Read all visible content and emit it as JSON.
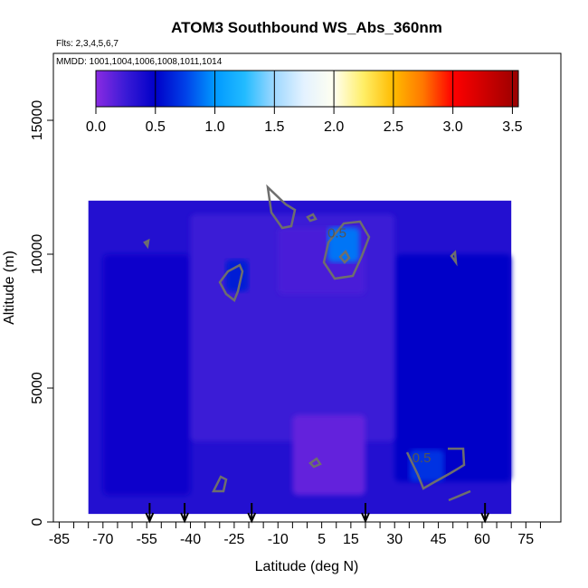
{
  "chart_data": {
    "type": "heatmap",
    "title": "ATOM3 Southbound WS_Abs_360nm",
    "notes": [
      "Flts: 2,3,4,5,6,7",
      "MMDD: 1001,1004,1006,1008,1011,1014"
    ],
    "xlabel": "Latitude (deg N)",
    "ylabel": "Altitude (m)",
    "xlim": [
      -87,
      87
    ],
    "ylim": [
      0,
      17500
    ],
    "x_ticks": [
      "-85",
      "-70",
      "-55",
      "-40",
      "-25",
      "-10",
      "5",
      "15",
      "30",
      "45",
      "60",
      "75"
    ],
    "x_tick_values": [
      -85,
      -70,
      -55,
      -40,
      -25,
      -10,
      5,
      15,
      30,
      45,
      60,
      75
    ],
    "y_ticks": [
      "0",
      "5000",
      "10000",
      "15000"
    ],
    "y_tick_values": [
      0,
      5000,
      10000,
      15000
    ],
    "colorbar": {
      "min": 0.0,
      "max": 3.55,
      "ticks": [
        "0.0",
        "0.5",
        "1.0",
        "1.5",
        "2.0",
        "2.5",
        "3.0",
        "3.5"
      ],
      "tick_values": [
        0,
        0.5,
        1.0,
        1.5,
        2.0,
        2.5,
        3.0,
        3.5
      ],
      "stops": [
        {
          "v": 0.0,
          "color": "#8a2be2"
        },
        {
          "v": 0.25,
          "color": "#3a1ad6"
        },
        {
          "v": 0.5,
          "color": "#0000c8"
        },
        {
          "v": 0.75,
          "color": "#0040e8"
        },
        {
          "v": 1.0,
          "color": "#0099ff"
        },
        {
          "v": 1.25,
          "color": "#22bbff"
        },
        {
          "v": 1.5,
          "color": "#9fd8ff"
        },
        {
          "v": 1.75,
          "color": "#e4f2ff"
        },
        {
          "v": 2.0,
          "color": "#fffff0"
        },
        {
          "v": 2.25,
          "color": "#ffee66"
        },
        {
          "v": 2.5,
          "color": "#ffbb00"
        },
        {
          "v": 2.75,
          "color": "#ff7700"
        },
        {
          "v": 3.0,
          "color": "#ff0000"
        },
        {
          "v": 3.55,
          "color": "#990000"
        }
      ]
    },
    "contour_labels": [
      {
        "text": "0.5",
        "lat": 7,
        "alt": 10800
      },
      {
        "text": "0.5",
        "lat": 36,
        "alt": 2400
      }
    ],
    "flight_markers_lat": [
      -54,
      -42,
      -19,
      20,
      61
    ],
    "regions": [
      {
        "lat": [
          -75,
          70
        ],
        "alt": [
          300,
          12000
        ],
        "value": 0.35
      },
      {
        "lat": [
          -70,
          -40
        ],
        "alt": [
          1000,
          10000
        ],
        "value": 0.45
      },
      {
        "lat": [
          30,
          70
        ],
        "alt": [
          1500,
          10000
        ],
        "value": 0.5
      },
      {
        "lat": [
          -40,
          30
        ],
        "alt": [
          3000,
          11500
        ],
        "value": 0.25
      },
      {
        "lat": [
          -5,
          20
        ],
        "alt": [
          1000,
          4000
        ],
        "value": 0.12
      },
      {
        "lat": [
          -10,
          20
        ],
        "alt": [
          8500,
          11000
        ],
        "value": 0.2
      },
      {
        "lat": [
          -28,
          -20
        ],
        "alt": [
          8600,
          9800
        ],
        "value": 0.6
      },
      {
        "lat": [
          7,
          18
        ],
        "alt": [
          9700,
          11000
        ],
        "value": 0.9
      },
      {
        "lat": [
          35,
          47
        ],
        "alt": [
          1500,
          2700
        ],
        "value": 0.7
      }
    ]
  }
}
